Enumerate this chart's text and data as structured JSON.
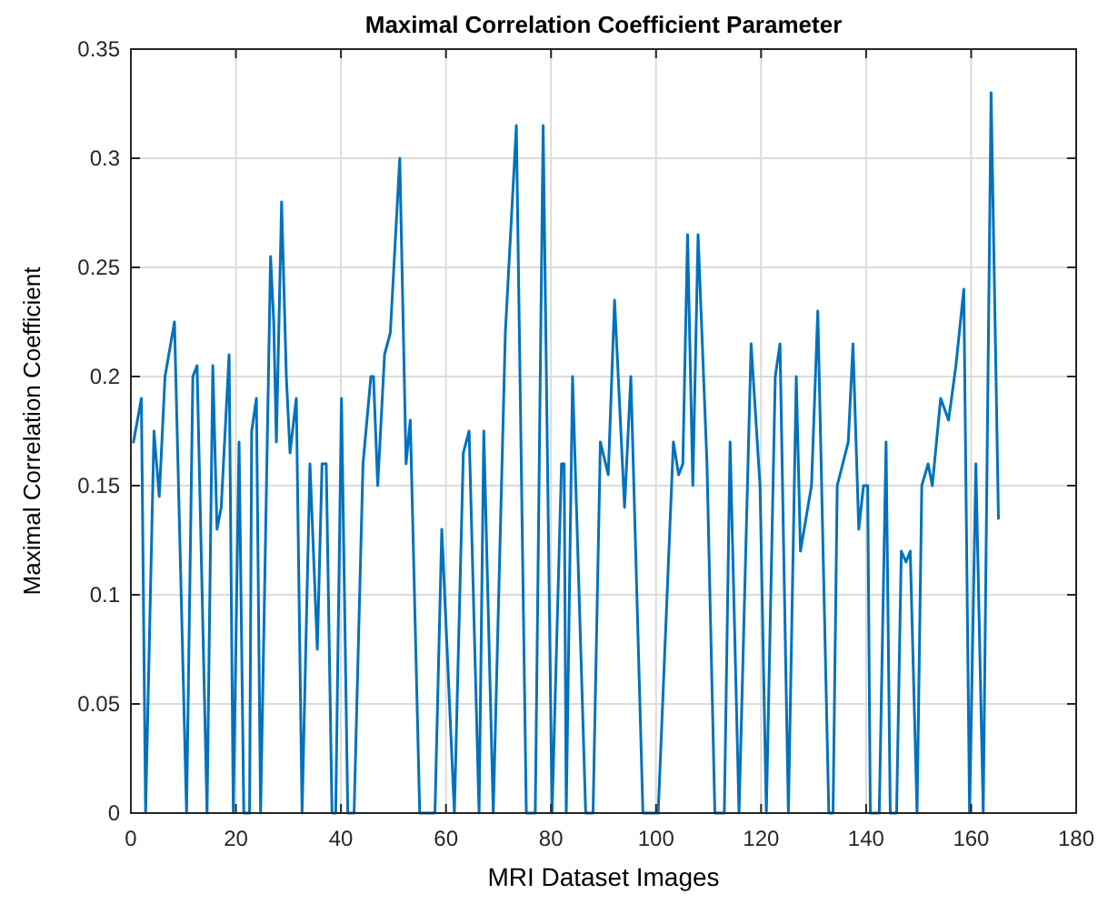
{
  "chart_data": {
    "type": "line",
    "title": "Maximal Correlation Coefficient Parameter",
    "xlabel": "MRI Dataset Images",
    "ylabel": "Maximal Correlation Coefficient",
    "series": [
      {
        "color": "#0072bd",
        "x": [
          0.5,
          2,
          2.8,
          4.4,
          5.4,
          6.5,
          8.3,
          10.6,
          11.8,
          12.6,
          14.5,
          15.6,
          16.4,
          17.2,
          18.7,
          19.5,
          20.6,
          21.5,
          22.6,
          23,
          23.9,
          24.7,
          26.6,
          27.2,
          27.7,
          28.7,
          29.6,
          30.3,
          31.5,
          32.6,
          34.1,
          35.5,
          36.4,
          37.2,
          38.3,
          39,
          40.1,
          41.3,
          42.5,
          44.2,
          45.7,
          46.2,
          47,
          48.3,
          49.4,
          51.2,
          52.4,
          53.2,
          55,
          57.9,
          59.2,
          61.6,
          63.3,
          64.4,
          66.3,
          67.2,
          69,
          71.3,
          73.4,
          75.3,
          77,
          78.5,
          80.2,
          82,
          82.5,
          82.9,
          84.1,
          86.6,
          88,
          89.4,
          90.9,
          92.1,
          94,
          95.2,
          97.5,
          100.4,
          103.3,
          104.3,
          105.1,
          106,
          107,
          108,
          109.7,
          111.2,
          113,
          114.1,
          115.8,
          118.1,
          119.8,
          121,
          122.7,
          123.6,
          125.2,
          126.7,
          127.5,
          129.6,
          130.8,
          132.9,
          133.7,
          134.5,
          136.6,
          137.5,
          138.6,
          139.5,
          140.3,
          140.8,
          142.5,
          143.8,
          144.6,
          145.8,
          146.7,
          147.6,
          148.4,
          149.7,
          150.6,
          151.8,
          152.6,
          154.2,
          155.7,
          157.1,
          158.6,
          159.7,
          160.9,
          162.3,
          163.8,
          165.2
        ],
        "values": [
          0.17,
          0.19,
          0,
          0.175,
          0.145,
          0.2,
          0.225,
          0,
          0.2,
          0.205,
          0,
          0.205,
          0.13,
          0.14,
          0.21,
          0,
          0.17,
          0,
          0,
          0.175,
          0.19,
          0,
          0.255,
          0.225,
          0.17,
          0.28,
          0.2,
          0.165,
          0.19,
          0,
          0.16,
          0.075,
          0.16,
          0.16,
          0,
          0,
          0.19,
          0,
          0,
          0.16,
          0.2,
          0.2,
          0.15,
          0.21,
          0.22,
          0.3,
          0.16,
          0.18,
          0,
          0,
          0.13,
          0,
          0.165,
          0.175,
          0,
          0.175,
          0,
          0.22,
          0.315,
          0,
          0,
          0.315,
          0,
          0.16,
          0.16,
          0,
          0.2,
          0,
          0,
          0.17,
          0.155,
          0.235,
          0.14,
          0.2,
          0,
          0,
          0.17,
          0.155,
          0.16,
          0.265,
          0.15,
          0.265,
          0.16,
          0,
          0,
          0.17,
          0,
          0.215,
          0.15,
          0,
          0.2,
          0.215,
          0,
          0.2,
          0.12,
          0.15,
          0.23,
          0,
          0,
          0.15,
          0.17,
          0.215,
          0.13,
          0.15,
          0.15,
          0,
          0,
          0.17,
          0,
          0,
          0.12,
          0.115,
          0.12,
          0,
          0.15,
          0.16,
          0.15,
          0.19,
          0.18,
          0.205,
          0.24,
          0,
          0.16,
          0,
          0.33,
          0.135
        ]
      }
    ],
    "xlim": [
      0,
      180
    ],
    "xticks": [
      0,
      20,
      40,
      60,
      80,
      100,
      120,
      140,
      160,
      180
    ],
    "ylim": [
      0,
      0.35
    ],
    "yticks": [
      0,
      0.05,
      0.1,
      0.15,
      0.2,
      0.25,
      0.3,
      0.35
    ],
    "grid": true,
    "line_style": "solid",
    "marker": "none"
  }
}
